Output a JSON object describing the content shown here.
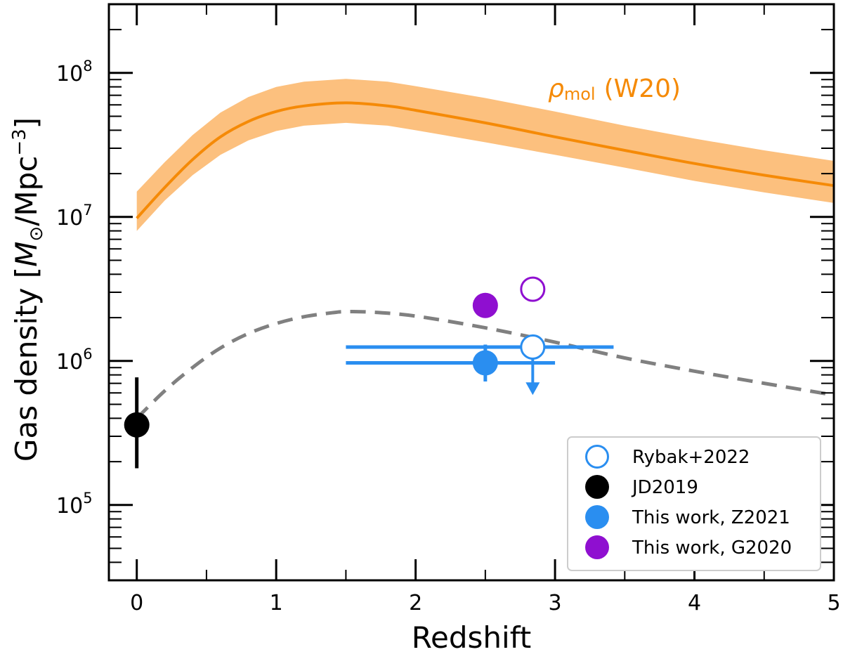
{
  "chart_data": {
    "type": "scatter",
    "xlabel": "Redshift",
    "ylabel": "Gas density [M⊙/Mpc⁻³]",
    "ylabel_parts": {
      "prefix": "Gas density [",
      "m": "M",
      "sun": "⊙",
      "mid": "/Mpc",
      "exp": "−3",
      "suffix": "]"
    },
    "xlim": [
      -0.2,
      5.0
    ],
    "ylim": [
      30000,
      300000000
    ],
    "yscale": "log",
    "x_ticks": [
      "0",
      "1",
      "2",
      "3",
      "4",
      "5"
    ],
    "y_ticks": [
      {
        "value": 100000,
        "base": "10",
        "exp": "5"
      },
      {
        "value": 1000000,
        "base": "10",
        "exp": "6"
      },
      {
        "value": 10000000,
        "base": "10",
        "exp": "7"
      },
      {
        "value": 100000000,
        "base": "10",
        "exp": "8"
      }
    ],
    "w20_band": {
      "label": "ρmol (W20)",
      "label_symbol": "ρ",
      "label_sub": "mol",
      "label_text": "(W20)",
      "color": "#f58a07",
      "band_color": "#fcc07e",
      "x": [
        0.0,
        0.2,
        0.4,
        0.6,
        0.8,
        1.0,
        1.2,
        1.5,
        1.8,
        2.0,
        2.5,
        3.0,
        3.5,
        4.0,
        4.5,
        5.0
      ],
      "y": [
        9800000,
        16000000,
        25000000,
        36000000,
        46000000,
        54000000,
        59000000,
        62000000,
        59000000,
        55000000,
        45000000,
        36000000,
        29000000,
        23500000,
        19500000,
        16500000
      ],
      "upper": [
        15000000,
        24000000,
        37000000,
        53000000,
        68000000,
        80000000,
        87000000,
        91000000,
        87000000,
        81000000,
        67000000,
        54000000,
        43000000,
        35000000,
        29000000,
        24500000
      ],
      "lower": [
        8000000,
        13000000,
        19500000,
        27000000,
        34000000,
        39500000,
        43000000,
        45000000,
        43000000,
        40000000,
        33000000,
        27000000,
        22000000,
        17800000,
        14800000,
        12500000
      ]
    },
    "dashed_curve": {
      "color": "#808080",
      "x": [
        0.0,
        0.2,
        0.4,
        0.6,
        0.8,
        1.0,
        1.2,
        1.4,
        1.5,
        1.7,
        2.0,
        2.5,
        3.0,
        3.5,
        4.0,
        4.5,
        5.0
      ],
      "y": [
        400000,
        620000,
        900000,
        1230000,
        1550000,
        1820000,
        2030000,
        2160000,
        2200000,
        2180000,
        2050000,
        1700000,
        1350000,
        1050000,
        850000,
        700000,
        580000
      ]
    },
    "points": [
      {
        "series": "JD2019",
        "x": 0.0,
        "y": 360000,
        "yerr_low": 180000,
        "yerr_high": 770000,
        "color": "#000000",
        "filled": true
      },
      {
        "series": "This work, Z2021",
        "x": 2.5,
        "y": 970000,
        "xerr_low": 1.5,
        "xerr_high": 3.0,
        "yerr_low": 720000,
        "yerr_high": 1300000,
        "color": "#2a8ef0",
        "filled": true
      },
      {
        "series": "This work, G2020",
        "x": 2.5,
        "y": 2430000,
        "color": "#8f0fd0",
        "filled": true
      },
      {
        "series": "Rybak+2022",
        "x": 2.84,
        "y": 1250000,
        "xerr_low": 1.5,
        "xerr_high": 3.42,
        "upper_limit": true,
        "arrow_to": 580000,
        "color": "#2a8ef0",
        "filled": false
      },
      {
        "series": "G2020 open",
        "x": 2.84,
        "y": 3150000,
        "color": "#8f0fd0",
        "filled": false
      }
    ],
    "legend": {
      "position": "lower right",
      "entries": [
        {
          "label": "Rybak+2022",
          "color": "#2a8ef0",
          "filled": false
        },
        {
          "label": "JD2019",
          "color": "#000000",
          "filled": true
        },
        {
          "label": "This work, Z2021",
          "color": "#2a8ef0",
          "filled": true
        },
        {
          "label": "This work, G2020",
          "color": "#8f0fd0",
          "filled": true
        }
      ]
    }
  }
}
